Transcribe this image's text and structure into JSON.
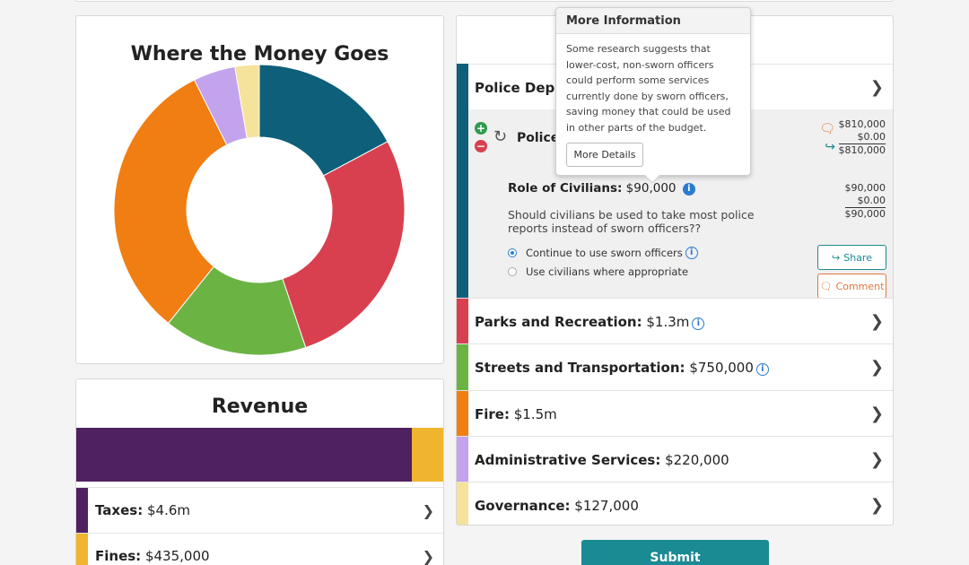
{
  "donut": {
    "title": "Where the Money Goes",
    "chart_data": {
      "type": "pie",
      "style": "donut",
      "categories": [
        "Police Department",
        "Parks and Recreation",
        "Streets and Transportation",
        "Fire",
        "Administrative Services",
        "Governance"
      ],
      "values": [
        810000,
        1300000,
        750000,
        1500000,
        220000,
        127000
      ],
      "colors": [
        "#0e5f79",
        "#d9404f",
        "#6bb443",
        "#f07e13",
        "#c3a3ec",
        "#f5e29b"
      ]
    }
  },
  "revenue": {
    "title": "Revenue",
    "bar": [
      {
        "value": 4600000,
        "color": "#4f2161"
      },
      {
        "value": 435000,
        "color": "#f0b42f"
      }
    ],
    "rows": [
      {
        "name": "Taxes:",
        "amount": "$4.6m",
        "color": "#4f2161"
      },
      {
        "name": "Fines:",
        "amount": "$435,000",
        "color": "#f0b42f"
      }
    ]
  },
  "panel": {
    "police": {
      "name": "Police Depar",
      "color": "#0e5f79"
    },
    "police_sub": {
      "name": "Police",
      "amounts": [
        "$810,000",
        "$0.00",
        "$810,000"
      ]
    },
    "civilians": {
      "title": "Role of Civilians:",
      "amount": "$90,000",
      "amounts": [
        "$90,000",
        "$0.00",
        "$90,000"
      ],
      "question": "Should civilians be used to take most police reports instead of sworn officers??",
      "options": [
        "Continue to use sworn officers",
        "Use civilians where appropriate"
      ],
      "selected": 0,
      "share_label": "Share",
      "comment_label": "Comment"
    },
    "categories": [
      {
        "name": "Parks and Recreation:",
        "amount": "$1.3m",
        "color": "#d9404f",
        "info": true
      },
      {
        "name": "Streets and Transportation:",
        "amount": "$750,000",
        "color": "#6bb443",
        "info": true
      },
      {
        "name": "Fire:",
        "amount": "$1.5m",
        "color": "#f07e13",
        "info": false
      },
      {
        "name": "Administrative Services:",
        "amount": "$220,000",
        "color": "#c3a3ec",
        "info": false
      },
      {
        "name": "Governance:",
        "amount": "$127,000",
        "color": "#f5e29b",
        "info": false
      }
    ]
  },
  "tooltip": {
    "title": "More Information",
    "body": "Some research suggests that lower-cost, non-sworn officers could perform some services currently done by sworn officers, saving money that could be used in other parts of the budget.",
    "button": "More Details"
  },
  "submit_label": "Submit",
  "icons": {
    "chevron": "chevron-right-icon",
    "info": "info-icon",
    "plus": "plus-icon",
    "minus": "minus-icon",
    "refresh": "refresh-icon",
    "comment": "comment-icon",
    "share": "share-icon"
  }
}
